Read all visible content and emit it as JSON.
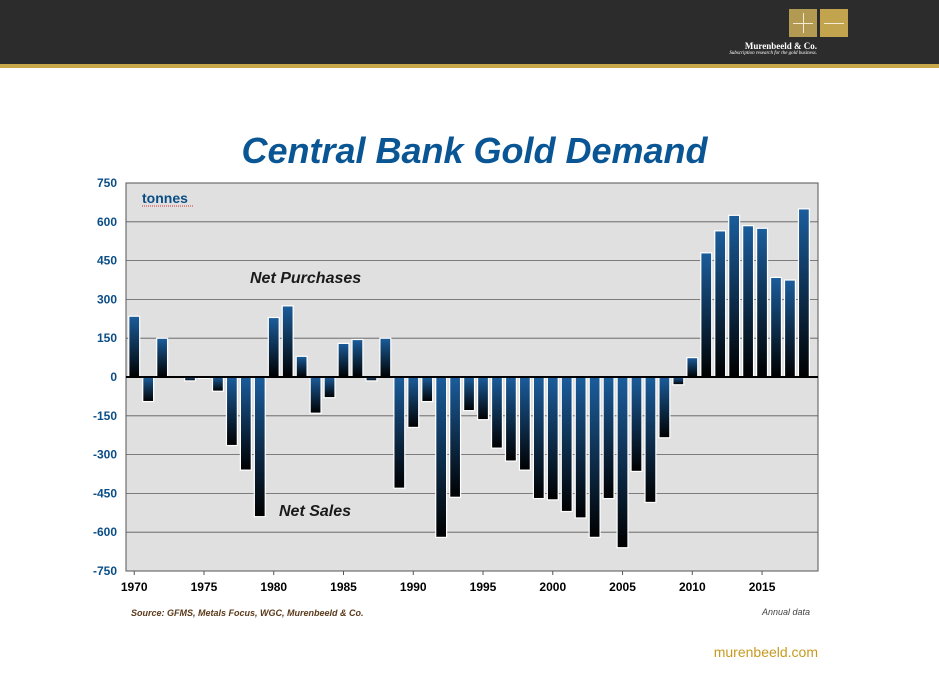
{
  "header": {
    "brand_name": "Murenbeeld & Co.",
    "brand_tagline": "Subscription research for the gold business.",
    "logo_icon": "two-gold-squares-logo"
  },
  "colors": {
    "header_bg": "#2c2c2c",
    "gold_accent": "#c9a84a",
    "title_blue": "#0a5694",
    "plot_bg": "#e0e0e0",
    "bar_top": "#1b5d9c",
    "bar_bottom": "#000000",
    "website_gold": "#c79a1f"
  },
  "footer": {
    "source": "Source: GFMS, Metals Focus, WGC, Murenbeeld & Co.",
    "note": "Annual data",
    "website": "murenbeeld.com"
  },
  "chart_data": {
    "type": "bar",
    "title": "Central Bank Gold Demand",
    "unit_label": "tonnes",
    "annotations": [
      "Net Purchases",
      "Net Sales"
    ],
    "x": [
      1970,
      1971,
      1972,
      1973,
      1974,
      1975,
      1976,
      1977,
      1978,
      1979,
      1980,
      1981,
      1982,
      1983,
      1984,
      1985,
      1986,
      1987,
      1988,
      1989,
      1990,
      1991,
      1992,
      1993,
      1994,
      1995,
      1996,
      1997,
      1998,
      1999,
      2000,
      2001,
      2002,
      2003,
      2004,
      2005,
      2006,
      2007,
      2008,
      2009,
      2010,
      2011,
      2012,
      2013,
      2014,
      2015,
      2016,
      2017,
      2018
    ],
    "values": [
      235,
      -95,
      150,
      0,
      -15,
      -5,
      -55,
      -265,
      -360,
      -540,
      230,
      275,
      80,
      -140,
      -80,
      130,
      145,
      -15,
      150,
      -430,
      -195,
      -95,
      -620,
      -465,
      -130,
      -165,
      -275,
      -325,
      -360,
      -470,
      -475,
      -520,
      -545,
      -620,
      -470,
      -660,
      -365,
      -485,
      -235,
      -30,
      75,
      480,
      565,
      625,
      585,
      575,
      385,
      375,
      650
    ],
    "xticks": [
      "1970",
      "1975",
      "1980",
      "1985",
      "1990",
      "1995",
      "2000",
      "2005",
      "2010",
      "2015"
    ],
    "yticks": [
      "750",
      "600",
      "450",
      "300",
      "150",
      "0",
      "-150",
      "-300",
      "-450",
      "-600",
      "-750"
    ],
    "ylim": [
      -750,
      750
    ],
    "grid": true,
    "legend": "none"
  }
}
